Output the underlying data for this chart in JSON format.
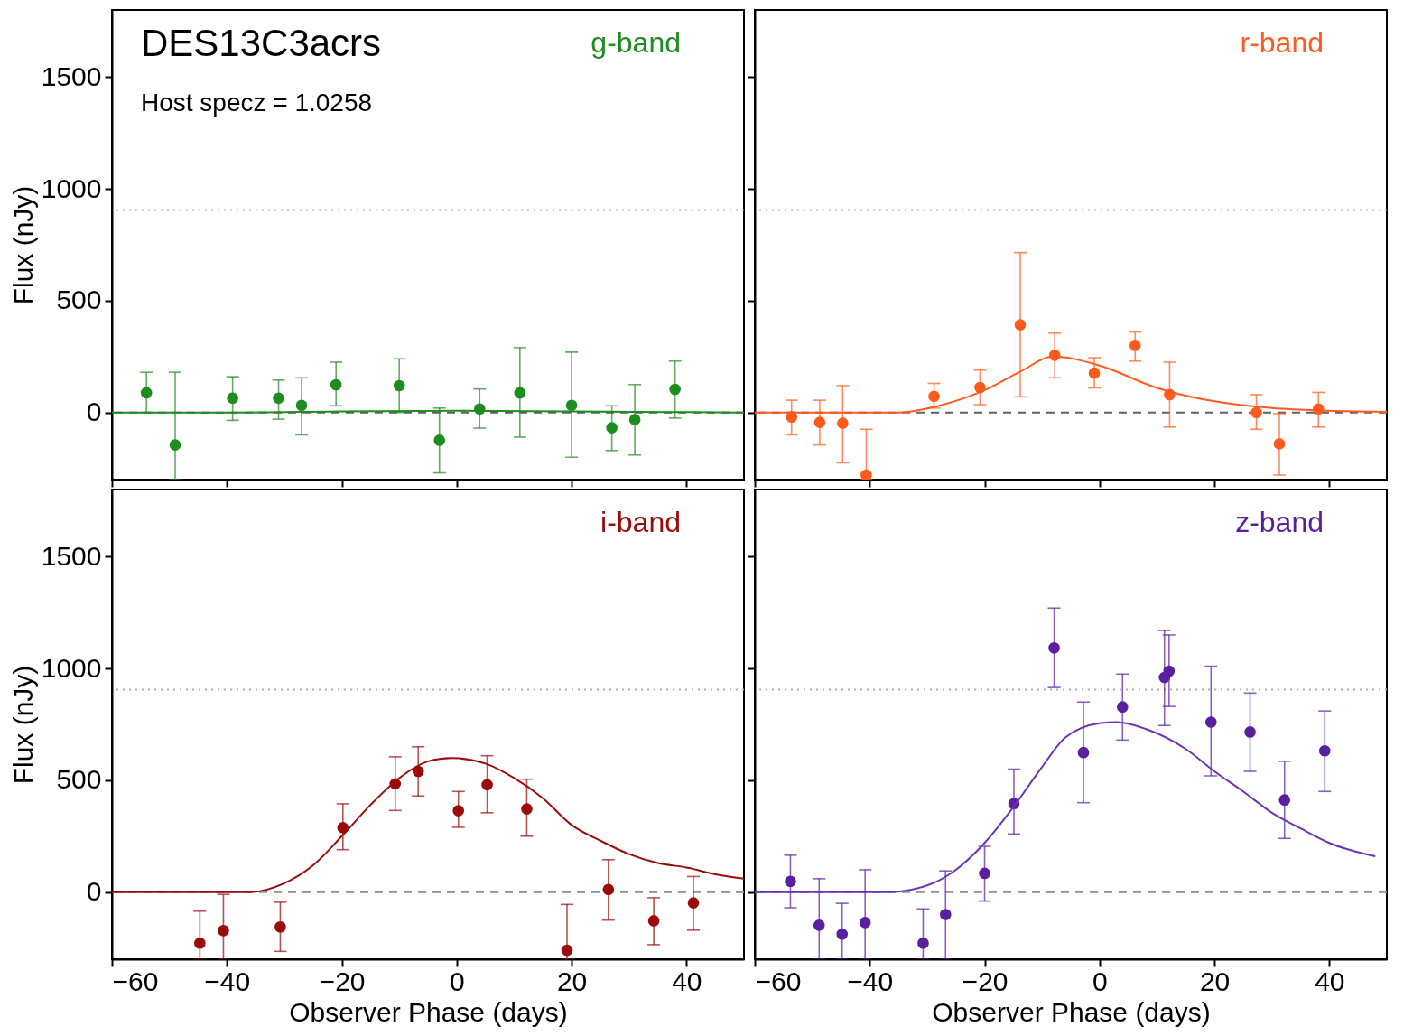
{
  "chart_data": [
    {
      "type": "scatter",
      "title": "DES13C3acrs",
      "annotations": [
        "Host specz = 1.0258"
      ],
      "ylabel": "Flux (nJy)",
      "xlim": [
        -60,
        50
      ],
      "ylim": [
        -300,
        1800
      ],
      "xticks": [
        -60,
        -40,
        -20,
        0,
        20,
        40
      ],
      "yticks": [
        0,
        500,
        1000,
        1500
      ],
      "tick_labels": "y",
      "grid": false,
      "series": [
        {
          "name": "g-band",
          "color": "#1e8c1e",
          "marker": "circle",
          "x": [
            -54,
            -49,
            -39,
            -31,
            -27,
            -21,
            -10,
            -3,
            4,
            11,
            20,
            27,
            31,
            38
          ],
          "values": [
            88,
            -145,
            64,
            64,
            32,
            124,
            120,
            -124,
            16,
            88,
            32,
            -68,
            -32,
            104
          ],
          "errors": [
            [
              0,
              180
            ],
            [
              -300,
              180
            ],
            [
              -35,
              160
            ],
            [
              -30,
              145
            ],
            [
              -100,
              155
            ],
            [
              30,
              225
            ],
            [
              0,
              240
            ],
            [
              -270,
              20
            ],
            [
              -70,
              105
            ],
            [
              -110,
              290
            ],
            [
              -200,
              270
            ],
            [
              -170,
              30
            ],
            [
              -190,
              125
            ],
            [
              -25,
              230
            ]
          ]
        },
        {
          "type": "line",
          "color": "#1e8c1e",
          "x": [
            -60,
            -40,
            -20,
            0,
            20,
            50
          ],
          "values": [
            0,
            0,
            5,
            8,
            5,
            0
          ],
          "line_style": "solid"
        }
      ],
      "ref_lines": [
        {
          "axis": "y",
          "value": 0,
          "color": "#606060",
          "line_style": "dashed"
        },
        {
          "axis": "y",
          "value": 905,
          "color": "#b0b0b0",
          "line_style": "dotted"
        }
      ]
    },
    {
      "type": "scatter",
      "xlim": [
        -60,
        50
      ],
      "ylim": [
        -300,
        1800
      ],
      "xticks": [
        -60,
        -40,
        -20,
        0,
        20,
        40
      ],
      "yticks": [
        0,
        500,
        1000,
        1500
      ],
      "tick_labels": false,
      "grid": false,
      "series": [
        {
          "name": "r-band",
          "color": "#ff5a1e",
          "marker": "circle",
          "x": [
            -53.6,
            -48.7,
            -44.7,
            -40.6,
            -28.8,
            -20.8,
            -13.8,
            -7.8,
            -0.9,
            6.2,
            12.2,
            27.3,
            31.3,
            38.1
          ],
          "values": [
            -20,
            -44,
            -48,
            -280,
            72,
            112,
            392,
            256,
            176,
            300,
            80,
            0,
            -140,
            16
          ],
          "errors": [
            [
              -100,
              55
            ],
            [
              -145,
              55
            ],
            [
              -225,
              120
            ],
            [
              -300,
              -75
            ],
            [
              20,
              130
            ],
            [
              35,
              190
            ],
            [
              70,
              715
            ],
            [
              155,
              355
            ],
            [
              110,
              245
            ],
            [
              230,
              360
            ],
            [
              -65,
              225
            ],
            [
              -75,
              80
            ],
            [
              -280,
              -5
            ],
            [
              -65,
              90
            ]
          ]
        },
        {
          "type": "line",
          "color": "#ff5a1e",
          "x": [
            -60,
            -35,
            -28,
            -20,
            -14,
            -8,
            0,
            10,
            12,
            20,
            30,
            40,
            50
          ],
          "values": [
            0,
            0,
            30,
            100,
            180,
            250,
            210,
            110,
            95,
            50,
            20,
            8,
            3
          ],
          "line_style": "solid"
        }
      ],
      "ref_lines": [
        {
          "axis": "y",
          "value": 0,
          "color": "#606060",
          "line_style": "dashed"
        },
        {
          "axis": "y",
          "value": 905,
          "color": "#b0b0b0",
          "line_style": "dotted"
        }
      ]
    },
    {
      "type": "scatter",
      "xlabel": "Observer Phase (days)",
      "ylabel": "Flux (nJy)",
      "xlim": [
        -60,
        50
      ],
      "ylim": [
        -300,
        1800
      ],
      "xticks": [
        -60,
        -40,
        -20,
        0,
        20,
        40
      ],
      "yticks": [
        0,
        500,
        1000,
        1500
      ],
      "grid": false,
      "series": [
        {
          "name": "i-band",
          "color": "#9a0c0c",
          "marker": "circle",
          "x": [
            -44.7,
            -40.6,
            -30.7,
            -19.8,
            -10.7,
            -6.7,
            0.3,
            5.3,
            12.2,
            19.2,
            26.4,
            34.3,
            41.2
          ],
          "values": [
            -228,
            -172,
            -156,
            288,
            484,
            540,
            364,
            480,
            372,
            -260,
            12,
            -128,
            -48
          ],
          "errors": [
            [
              -300,
              -85
            ],
            [
              -300,
              -10
            ],
            [
              -265,
              -45
            ],
            [
              190,
              395
            ],
            [
              365,
              605
            ],
            [
              430,
              650
            ],
            [
              290,
              450
            ],
            [
              355,
              610
            ],
            [
              250,
              505
            ],
            [
              -300,
              -55
            ],
            [
              -125,
              145
            ],
            [
              -235,
              -25
            ],
            [
              -170,
              70
            ]
          ]
        },
        {
          "type": "line",
          "color": "#9a0c0c",
          "x": [
            -60,
            -36,
            -30,
            -25,
            -20,
            -15,
            -10,
            -5,
            -1,
            5,
            10,
            15,
            20,
            25,
            30,
            35,
            40,
            45,
            50
          ],
          "values": [
            0,
            0,
            40,
            120,
            250,
            390,
            510,
            585,
            600,
            575,
            510,
            420,
            300,
            230,
            170,
            130,
            110,
            80,
            60
          ],
          "line_style": "solid"
        }
      ],
      "ref_lines": [
        {
          "axis": "y",
          "value": 0,
          "color": "#909090",
          "line_style": "dashed"
        },
        {
          "axis": "y",
          "value": 905,
          "color": "#b0b0b0",
          "line_style": "dotted"
        }
      ]
    },
    {
      "type": "scatter",
      "xlabel": "Observer Phase (days)",
      "xlim": [
        -60,
        50
      ],
      "ylim": [
        -300,
        1800
      ],
      "xticks": [
        -60,
        -40,
        -20,
        0,
        20,
        40
      ],
      "yticks": [
        0,
        500,
        1000,
        1500
      ],
      "tick_labels": "x",
      "grid": false,
      "series": [
        {
          "name": "z-band",
          "color": "#5a1f9e",
          "marker": "circle",
          "x": [
            -53.8,
            -48.8,
            -44.8,
            -40.8,
            -30.7,
            -26.8,
            -20,
            -14.9,
            -7.9,
            -2.8,
            4,
            11.3,
            12.1,
            19.4,
            26.2,
            32.2,
            39.2
          ],
          "values": [
            48,
            -148,
            -188,
            -136,
            -228,
            -100,
            84,
            396,
            1092,
            624,
            828,
            960,
            988,
            760,
            716,
            412,
            632
          ],
          "errors": [
            [
              -70,
              165
            ],
            [
              -300,
              60
            ],
            [
              -300,
              -50
            ],
            [
              -300,
              100
            ],
            [
              -300,
              -75
            ],
            [
              -300,
              95
            ],
            [
              -40,
              205
            ],
            [
              260,
              550
            ],
            [
              915,
              1270
            ],
            [
              400,
              850
            ],
            [
              680,
              975
            ],
            [
              745,
              1170
            ],
            [
              830,
              1150
            ],
            [
              520,
              1010
            ],
            [
              540,
              890
            ],
            [
              240,
              585
            ],
            [
              450,
              810
            ]
          ]
        },
        {
          "type": "line",
          "color": "#6a35b5",
          "x": [
            -60,
            -37,
            -30,
            -25,
            -20,
            -15,
            -10,
            -6,
            0,
            3,
            8,
            15,
            20,
            25,
            30,
            35,
            40,
            48
          ],
          "values": [
            0,
            0,
            30,
            100,
            220,
            380,
            560,
            690,
            755,
            760,
            730,
            640,
            540,
            450,
            355,
            285,
            220,
            160
          ],
          "line_style": "solid"
        }
      ],
      "ref_lines": [
        {
          "axis": "y",
          "value": 0,
          "color": "#909090",
          "line_style": "dashed"
        },
        {
          "axis": "y",
          "value": 905,
          "color": "#b0b0b0",
          "line_style": "dotted"
        }
      ]
    }
  ]
}
